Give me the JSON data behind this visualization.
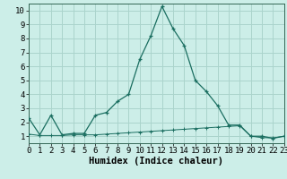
{
  "xlabel": "Humidex (Indice chaleur)",
  "background_color": "#cceee8",
  "grid_color": "#aad4cc",
  "line_color": "#1a6e60",
  "x_line1": [
    0,
    1,
    2,
    3,
    4,
    5,
    6,
    7,
    8,
    9,
    10,
    11,
    12,
    13,
    14,
    15,
    16,
    17,
    18,
    19,
    20,
    21,
    22,
    23
  ],
  "y_line1": [
    2.3,
    1.1,
    2.5,
    1.1,
    1.2,
    1.2,
    2.5,
    2.7,
    3.5,
    4.0,
    6.5,
    8.2,
    10.3,
    8.7,
    7.5,
    5.0,
    4.2,
    3.2,
    1.8,
    1.8,
    1.0,
    1.0,
    0.85,
    1.0
  ],
  "x_line2": [
    0,
    1,
    2,
    3,
    4,
    5,
    6,
    7,
    8,
    9,
    10,
    11,
    12,
    13,
    14,
    15,
    16,
    17,
    18,
    19,
    20,
    21,
    22,
    23
  ],
  "y_line2": [
    1.15,
    1.05,
    1.05,
    1.05,
    1.1,
    1.1,
    1.1,
    1.15,
    1.2,
    1.25,
    1.3,
    1.35,
    1.4,
    1.45,
    1.5,
    1.55,
    1.6,
    1.65,
    1.7,
    1.75,
    1.0,
    0.9,
    0.88,
    1.0
  ],
  "xlim": [
    0,
    23
  ],
  "ylim": [
    0.5,
    10.5
  ],
  "yticks": [
    1,
    2,
    3,
    4,
    5,
    6,
    7,
    8,
    9,
    10
  ],
  "xticks": [
    0,
    1,
    2,
    3,
    4,
    5,
    6,
    7,
    8,
    9,
    10,
    11,
    12,
    13,
    14,
    15,
    16,
    17,
    18,
    19,
    20,
    21,
    22,
    23
  ],
  "tick_fontsize": 6.5,
  "label_fontsize": 7.5,
  "marker": "+",
  "spine_color": "#336655"
}
